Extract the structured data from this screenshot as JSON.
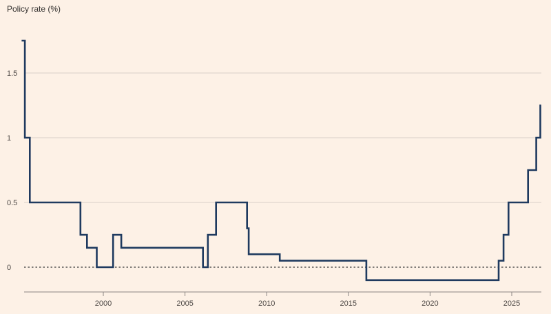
{
  "chart_data": {
    "type": "line",
    "title": "Policy rate (%)",
    "xlabel": "",
    "ylabel": "",
    "xlim": [
      1995.0,
      2026.8
    ],
    "ylim": [
      -0.13,
      1.78
    ],
    "x_ticks": [
      {
        "label": "2000",
        "value": 2000
      },
      {
        "label": "2005",
        "value": 2005
      },
      {
        "label": "2010",
        "value": 2010
      },
      {
        "label": "2015",
        "value": 2015
      },
      {
        "label": "2020",
        "value": 2020
      },
      {
        "label": "2025",
        "value": 2025
      }
    ],
    "y_ticks": [
      {
        "label": "0",
        "value": 0
      },
      {
        "label": "0.5",
        "value": 0.5
      },
      {
        "label": "1",
        "value": 1
      },
      {
        "label": "1.5",
        "value": 1.5
      }
    ],
    "grid": "horizontal",
    "zero_line": "dotted",
    "series": [
      {
        "name": "",
        "color": "#1f3a5f",
        "step": true,
        "points": [
          [
            1995.0,
            1.75
          ],
          [
            1995.2,
            1.0
          ],
          [
            1995.5,
            0.5
          ],
          [
            1998.6,
            0.25
          ],
          [
            1999.0,
            0.15
          ],
          [
            1999.6,
            0.0
          ],
          [
            2000.6,
            0.25
          ],
          [
            2001.1,
            0.15
          ],
          [
            2006.1,
            0.0
          ],
          [
            2006.4,
            0.25
          ],
          [
            2006.9,
            0.5
          ],
          [
            2008.8,
            0.3
          ],
          [
            2008.9,
            0.1
          ],
          [
            2010.8,
            0.05
          ],
          [
            2016.1,
            -0.1
          ],
          [
            2024.2,
            0.05
          ],
          [
            2024.5,
            0.25
          ],
          [
            2024.8,
            0.5
          ],
          [
            2026.0,
            0.75
          ],
          [
            2026.5,
            1.0
          ],
          [
            2026.75,
            1.25
          ]
        ]
      }
    ]
  }
}
